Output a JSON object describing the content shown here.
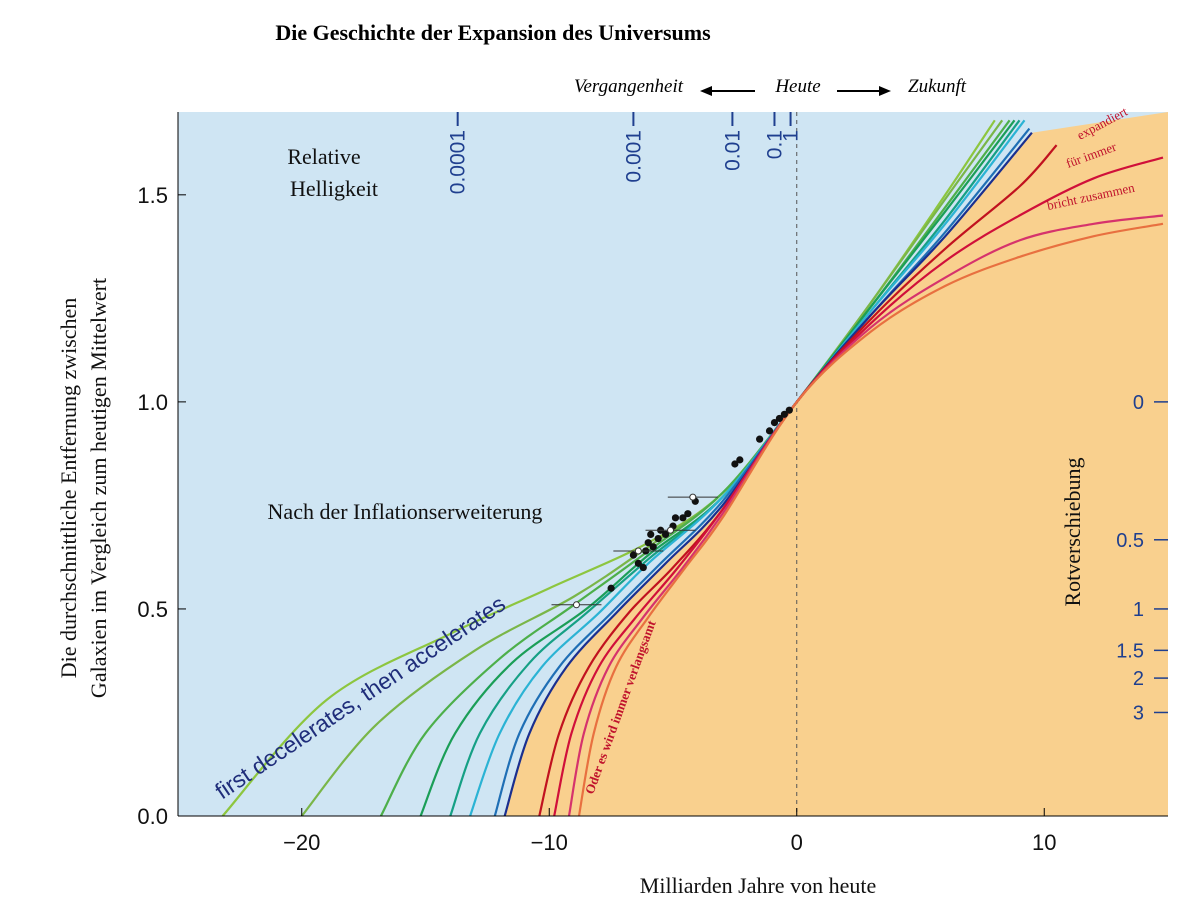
{
  "chart_data": {
    "type": "line",
    "title": "Die Geschichte der Expansion des Universums",
    "xlabel": "Milliarden Jahre von heute",
    "ylabel_line1": "Die durchschnittliche Entfernung zwischen",
    "ylabel_line2": "Galaxien im Vergleich zum heutigen Mittelwert",
    "xlim": [
      -25,
      15
    ],
    "ylim": [
      0,
      1.7
    ],
    "x_ticks": [
      -20,
      -10,
      0,
      10
    ],
    "x_tick_labels": [
      "−20",
      "−10",
      "0",
      "10"
    ],
    "y_ticks": [
      0.0,
      0.5,
      1.0,
      1.5
    ],
    "y_tick_labels": [
      "0.0",
      "0.5",
      "1.0",
      "1.5"
    ],
    "timeline": {
      "past": "Vergangenheit",
      "now": "Heute",
      "future": "Zukunft"
    },
    "brightness": {
      "label_line1": "Relative",
      "label_line2": "Helligkeit",
      "ticks": [
        {
          "label": "0.0001",
          "x": -13.7
        },
        {
          "label": "0.001",
          "x": -6.6
        },
        {
          "label": "0.01",
          "x": -2.6
        },
        {
          "label": "0.1",
          "x": -0.9
        },
        {
          "label": "1",
          "x": -0.25
        }
      ]
    },
    "redshift": {
      "label": "Rotverschiebung",
      "ticks": [
        {
          "label": "0",
          "y": 1.0
        },
        {
          "label": "0.5",
          "y": 0.667
        },
        {
          "label": "1",
          "y": 0.5
        },
        {
          "label": "1.5",
          "y": 0.4
        },
        {
          "label": "2",
          "y": 0.333
        },
        {
          "label": "3",
          "y": 0.25
        }
      ]
    },
    "annotations": {
      "inflation": "Nach der Inflationserweiterung",
      "accelerates": "first decelerates, then accelerates",
      "expands_line1": "expandiert",
      "expands_line2": "für immer",
      "collapses": "bricht zusammen",
      "slows": "Oder es wird immer verlangsamt"
    },
    "series": [
      {
        "color": "#8dc63f",
        "values": [
          [
            -23.2,
            0.0
          ],
          [
            -19,
            0.28
          ],
          [
            -14,
            0.44
          ],
          [
            -10,
            0.55
          ],
          [
            -6,
            0.66
          ],
          [
            -3,
            0.78
          ],
          [
            0,
            1.0
          ],
          [
            3,
            1.24
          ],
          [
            6,
            1.5
          ],
          [
            8,
            1.68
          ]
        ]
      },
      {
        "color": "#7ab648",
        "values": [
          [
            -20,
            0.0
          ],
          [
            -17,
            0.22
          ],
          [
            -13,
            0.4
          ],
          [
            -9,
            0.53
          ],
          [
            -6,
            0.65
          ],
          [
            -3,
            0.78
          ],
          [
            0,
            1.0
          ],
          [
            3,
            1.24
          ],
          [
            6,
            1.49
          ],
          [
            8.3,
            1.68
          ]
        ]
      },
      {
        "color": "#4daf4a",
        "values": [
          [
            -16.8,
            0.0
          ],
          [
            -15,
            0.2
          ],
          [
            -12,
            0.38
          ],
          [
            -9,
            0.51
          ],
          [
            -6,
            0.64
          ],
          [
            -3,
            0.78
          ],
          [
            0,
            1.0
          ],
          [
            3,
            1.23
          ],
          [
            6,
            1.47
          ],
          [
            8.6,
            1.68
          ]
        ]
      },
      {
        "color": "#1b9e57",
        "values": [
          [
            -15.2,
            0.0
          ],
          [
            -13.8,
            0.2
          ],
          [
            -11.5,
            0.37
          ],
          [
            -8.5,
            0.5
          ],
          [
            -6,
            0.63
          ],
          [
            -3,
            0.77
          ],
          [
            0,
            1.0
          ],
          [
            3,
            1.23
          ],
          [
            6,
            1.46
          ],
          [
            8.8,
            1.68
          ]
        ]
      },
      {
        "color": "#16a085",
        "values": [
          [
            -14,
            0.0
          ],
          [
            -12.8,
            0.2
          ],
          [
            -10.8,
            0.37
          ],
          [
            -8.5,
            0.49
          ],
          [
            -6,
            0.62
          ],
          [
            -3,
            0.77
          ],
          [
            0,
            1.0
          ],
          [
            3,
            1.22
          ],
          [
            6,
            1.44
          ],
          [
            9.0,
            1.68
          ]
        ]
      },
      {
        "color": "#2bb3d4",
        "values": [
          [
            -13.2,
            0.0
          ],
          [
            -12,
            0.2
          ],
          [
            -10.3,
            0.36
          ],
          [
            -8,
            0.49
          ],
          [
            -6,
            0.61
          ],
          [
            -3,
            0.77
          ],
          [
            0,
            1.0
          ],
          [
            3,
            1.22
          ],
          [
            6,
            1.43
          ],
          [
            9.2,
            1.68
          ]
        ]
      },
      {
        "color": "#1f6fb5",
        "values": [
          [
            -12.2,
            0.0
          ],
          [
            -11.2,
            0.2
          ],
          [
            -9.6,
            0.36
          ],
          [
            -7.5,
            0.49
          ],
          [
            -5.5,
            0.61
          ],
          [
            -3,
            0.76
          ],
          [
            0,
            1.0
          ],
          [
            3,
            1.21
          ],
          [
            6,
            1.41
          ],
          [
            9.4,
            1.66
          ]
        ]
      },
      {
        "color": "#1a2f8f",
        "values": [
          [
            -11.8,
            0.0
          ],
          [
            -10.8,
            0.2
          ],
          [
            -9.3,
            0.36
          ],
          [
            -7.3,
            0.49
          ],
          [
            -5.3,
            0.61
          ],
          [
            -3,
            0.75
          ],
          [
            0,
            1.0
          ],
          [
            3,
            1.21
          ],
          [
            6,
            1.4
          ],
          [
            9.5,
            1.65
          ]
        ]
      },
      {
        "color": "#c1121f",
        "values": [
          [
            -10.4,
            0.0
          ],
          [
            -9.6,
            0.2
          ],
          [
            -8.4,
            0.36
          ],
          [
            -6.8,
            0.49
          ],
          [
            -5,
            0.6
          ],
          [
            -3,
            0.74
          ],
          [
            0,
            1.0
          ],
          [
            3,
            1.2
          ],
          [
            6,
            1.37
          ],
          [
            9.0,
            1.52
          ],
          [
            10.5,
            1.62
          ]
        ]
      },
      {
        "color": "#d0103a",
        "values": [
          [
            -9.8,
            0.0
          ],
          [
            -9.1,
            0.2
          ],
          [
            -8.0,
            0.36
          ],
          [
            -6.5,
            0.48
          ],
          [
            -4.8,
            0.6
          ],
          [
            -3,
            0.74
          ],
          [
            0,
            1.0
          ],
          [
            3,
            1.19
          ],
          [
            6,
            1.34
          ],
          [
            9,
            1.45
          ],
          [
            12,
            1.54
          ],
          [
            14.8,
            1.59
          ]
        ]
      },
      {
        "color": "#d6336c",
        "values": [
          [
            -9.2,
            0.0
          ],
          [
            -8.6,
            0.2
          ],
          [
            -7.6,
            0.36
          ],
          [
            -6.2,
            0.48
          ],
          [
            -4.6,
            0.6
          ],
          [
            -3,
            0.73
          ],
          [
            0,
            1.0
          ],
          [
            3,
            1.18
          ],
          [
            6,
            1.3
          ],
          [
            9,
            1.39
          ],
          [
            12,
            1.43
          ],
          [
            14.8,
            1.45
          ]
        ]
      },
      {
        "color": "#e87040",
        "values": [
          [
            -8.8,
            0.0
          ],
          [
            -8.2,
            0.2
          ],
          [
            -7.3,
            0.36
          ],
          [
            -6.0,
            0.48
          ],
          [
            -4.5,
            0.6
          ],
          [
            -3,
            0.72
          ],
          [
            0,
            1.0
          ],
          [
            3,
            1.17
          ],
          [
            6,
            1.28
          ],
          [
            9,
            1.35
          ],
          [
            12,
            1.4
          ],
          [
            14.8,
            1.43
          ]
        ]
      }
    ],
    "observations": [
      [
        -7.5,
        0.55
      ],
      [
        -6.6,
        0.63
      ],
      [
        -6.4,
        0.61
      ],
      [
        -6.2,
        0.6
      ],
      [
        -6.1,
        0.64
      ],
      [
        -6.0,
        0.66
      ],
      [
        -5.9,
        0.68
      ],
      [
        -5.8,
        0.65
      ],
      [
        -5.6,
        0.67
      ],
      [
        -5.5,
        0.69
      ],
      [
        -5.3,
        0.68
      ],
      [
        -5.0,
        0.7
      ],
      [
        -4.9,
        0.72
      ],
      [
        -4.6,
        0.72
      ],
      [
        -4.4,
        0.73
      ],
      [
        -4.1,
        0.76
      ],
      [
        -2.5,
        0.85
      ],
      [
        -2.3,
        0.86
      ],
      [
        -1.5,
        0.91
      ],
      [
        -1.1,
        0.93
      ],
      [
        -0.9,
        0.95
      ],
      [
        -0.7,
        0.96
      ],
      [
        -0.5,
        0.97
      ],
      [
        -0.3,
        0.98
      ]
    ],
    "open_observations": [
      [
        -8.9,
        0.51
      ],
      [
        -6.4,
        0.64
      ],
      [
        -5.1,
        0.69
      ],
      [
        -4.2,
        0.77
      ]
    ]
  }
}
